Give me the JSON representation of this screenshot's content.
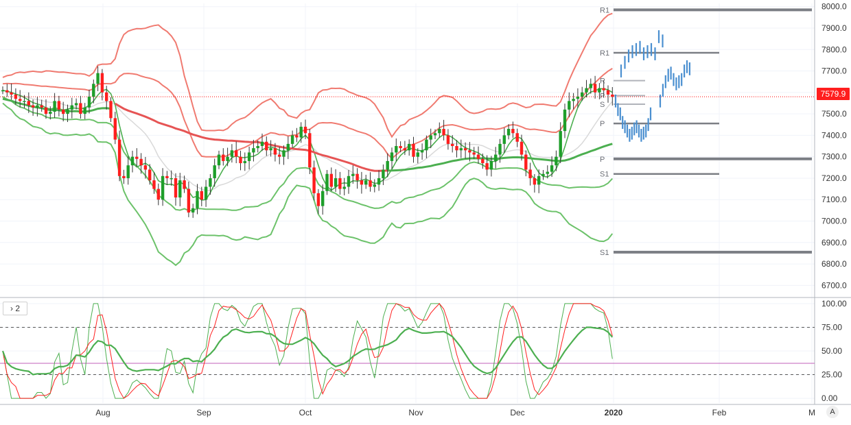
{
  "colors": {
    "up": "#1e9e2a",
    "down": "#ff1e1e",
    "bb_red": "#f07a70",
    "bb_green": "#6cc26a",
    "ma_red": "#e65454",
    "ma_green": "#4caf50",
    "ma_gray": "#d9d9d9",
    "pivot": "#7b7e84",
    "proj": "#4a8fd0",
    "price_line": "#ff0000",
    "osc_thick": "#4caf50",
    "osc_red": "#ff1e1e",
    "grid": "#f0f3fa",
    "axis_text": "#333333",
    "osc_level": "#c05fb8"
  },
  "pane_tag": {
    "icon": "chevron-right-icon",
    "label": "2"
  },
  "price_tag": "7579.9",
  "corner_button": "A",
  "chart_data": [
    {
      "type": "candlestick",
      "price_axis": {
        "ticks": [
          "8000.0",
          "7900.0",
          "7800.0",
          "7700.0",
          "7600.0",
          "7500.0",
          "7400.0",
          "7300.0",
          "7200.0",
          "7100.0",
          "7000.0",
          "6900.0",
          "6800.0",
          "6700.0"
        ],
        "range": [
          6650,
          8015
        ],
        "last_price": 7579.9
      },
      "time_axis": {
        "ticks": [
          "Aug",
          "Sep",
          "Oct",
          "Nov",
          "Dec",
          "2020",
          "Feb",
          "M"
        ]
      },
      "ohlc_close": [
        7610,
        7600,
        7590,
        7570,
        7560,
        7560,
        7540,
        7530,
        7540,
        7530,
        7500,
        7510,
        7560,
        7520,
        7500,
        7520,
        7540,
        7550,
        7500,
        7530,
        7580,
        7640,
        7690,
        7600,
        7560,
        7480,
        7380,
        7210,
        7200,
        7260,
        7300,
        7290,
        7260,
        7240,
        7190,
        7150,
        7100,
        7210,
        7200,
        7200,
        7110,
        7190,
        7150,
        7040,
        7060,
        7140,
        7100,
        7160,
        7200,
        7260,
        7310,
        7280,
        7300,
        7330,
        7300,
        7270,
        7280,
        7320,
        7340,
        7350,
        7370,
        7330,
        7340,
        7310,
        7300,
        7330,
        7360,
        7400,
        7390,
        7440,
        7410,
        7250,
        7130,
        7070,
        7140,
        7220,
        7160,
        7200,
        7150,
        7160,
        7210,
        7220,
        7190,
        7170,
        7190,
        7160,
        7170,
        7200,
        7240,
        7280,
        7320,
        7350,
        7340,
        7330,
        7360,
        7300,
        7320,
        7330,
        7380,
        7400,
        7410,
        7430,
        7400,
        7360,
        7350,
        7330,
        7340,
        7330,
        7320,
        7310,
        7290,
        7270,
        7240,
        7280,
        7310,
        7360,
        7400,
        7430,
        7410,
        7370,
        7310,
        7240,
        7200,
        7170,
        7210,
        7220,
        7230,
        7260,
        7300,
        7420,
        7520,
        7560,
        7570,
        7580,
        7600,
        7620,
        7640,
        7600,
        7620,
        7610,
        7590,
        7579.9
      ],
      "pivots": [
        {
          "label": "R1",
          "value": 7985,
          "start": "2020",
          "end": "M"
        },
        {
          "label": "S1",
          "value": 6855,
          "start": "2020",
          "end": "M"
        },
        {
          "label": "P",
          "value": 7290,
          "start": "2020",
          "end": "M"
        },
        {
          "label": "R1",
          "value": 7785,
          "start": "2020",
          "end": "Feb"
        },
        {
          "label": "P",
          "value": 7455,
          "start": "2020",
          "end": "Feb"
        },
        {
          "label": "S1",
          "value": 7220,
          "start": "2020",
          "end": "Feb"
        },
        {
          "label": "R",
          "value": 7655,
          "start": "2020",
          "end": "2020"
        },
        {
          "label": "P",
          "value": 7585,
          "start": "2020",
          "end": "2020"
        },
        {
          "label": "S",
          "value": 7545,
          "start": "2020",
          "end": "2020"
        }
      ],
      "projection_ticks": [
        7700,
        7740,
        7770,
        7790,
        7800,
        7810,
        7780,
        7790,
        7800,
        7780,
        7860,
        7840,
        7560,
        7520,
        7500,
        7460,
        7440,
        7420,
        7400,
        7410,
        7430,
        7440,
        7420,
        7400,
        7410,
        7420,
        7450,
        7500,
        7560,
        7610,
        7650,
        7680,
        7690,
        7660,
        7640,
        7650,
        7660,
        7700,
        7720,
        7710
      ]
    },
    {
      "type": "line",
      "y_axis": {
        "ticks": [
          "100.00",
          "75.00",
          "50.00",
          "25.00",
          "0.00"
        ],
        "range": [
          -5,
          105
        ]
      },
      "levels": [
        75,
        25,
        37
      ]
    }
  ]
}
